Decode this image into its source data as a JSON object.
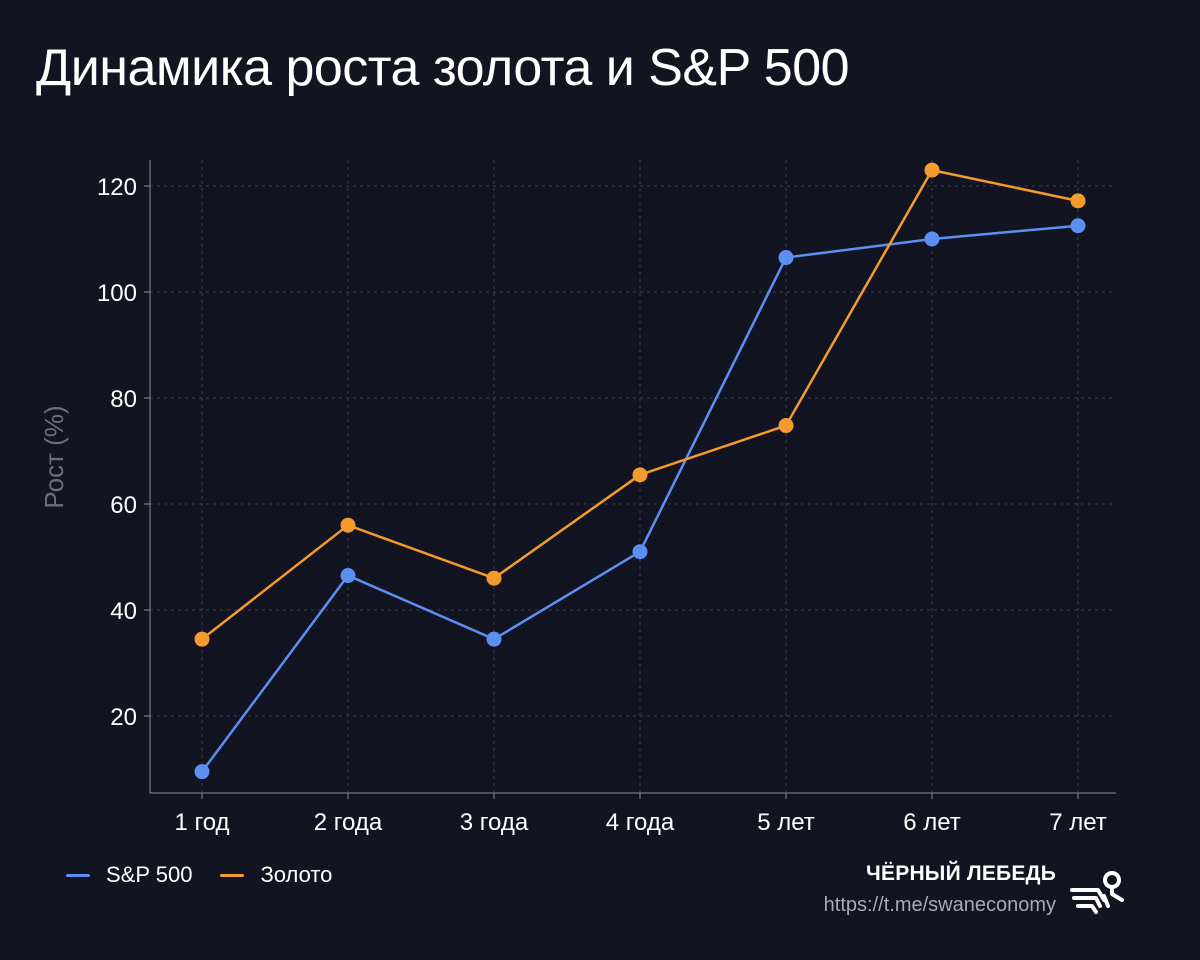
{
  "title": "Динамика роста золота и S&P 500",
  "chart_data": {
    "type": "line",
    "categories": [
      "1 год",
      "2 года",
      "3 года",
      "4 года",
      "5 лет",
      "6 лет",
      "7 лет"
    ],
    "series": [
      {
        "name": "S&P  500",
        "color": "#5b8ff2",
        "values": [
          9.5,
          46.5,
          34.5,
          51,
          106.5,
          110,
          112.5
        ]
      },
      {
        "name": "Золото",
        "color": "#f39c2d",
        "values": [
          34.5,
          56,
          46,
          65.5,
          74.8,
          123,
          117.2
        ]
      }
    ],
    "yticks": [
      20,
      40,
      60,
      80,
      100,
      120
    ],
    "ylim": [
      5,
      127
    ],
    "ylabel": "Рост (%)",
    "xlabel": "",
    "grid": true
  },
  "legend": {
    "items": [
      {
        "label": "S&P  500",
        "color": "#5b8ff2"
      },
      {
        "label": "Золото",
        "color": "#f39c2d"
      }
    ]
  },
  "brand": {
    "name": "ЧЁРНЫЙ ЛЕБЕДЬ",
    "link": "https://t.me/swaneconomy",
    "logo_icon": "swan-logo-icon"
  }
}
